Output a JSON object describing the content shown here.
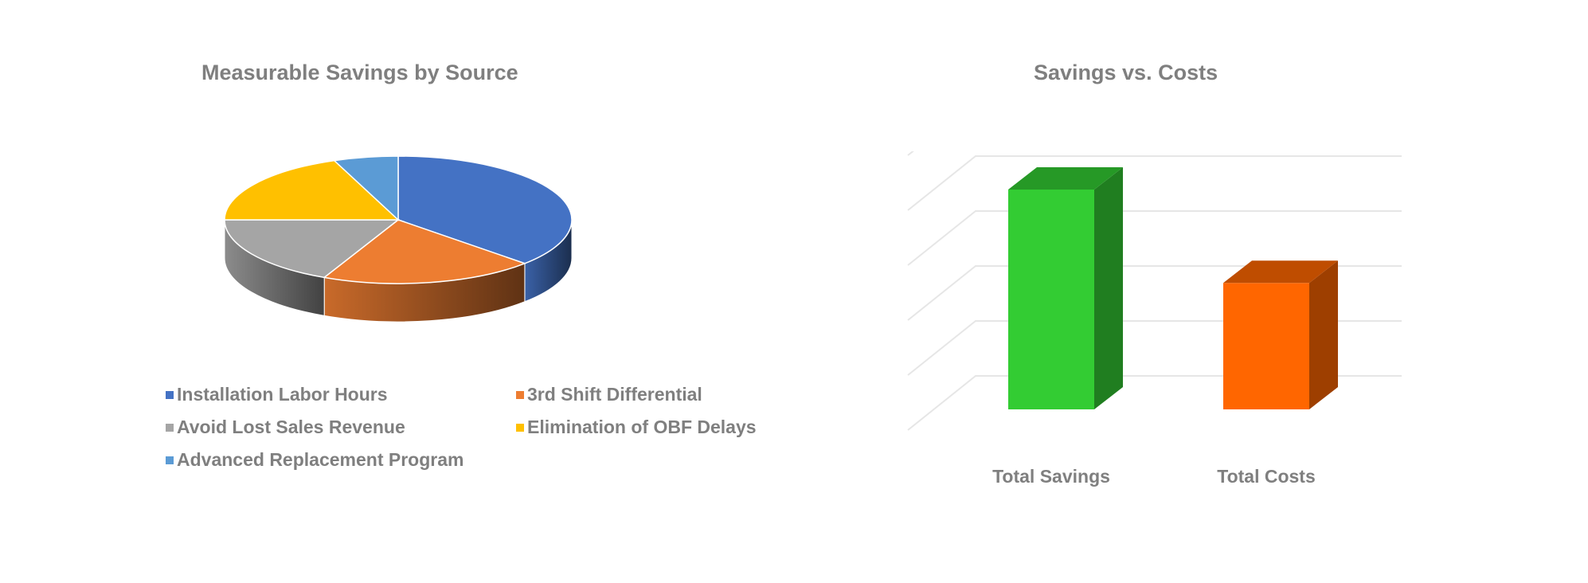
{
  "chart_data": [
    {
      "type": "pie",
      "title": "Measurable Savings by Source",
      "categories": [
        "Installation Labor Hours",
        "3rd Shift Differential",
        "Avoid Lost Sales Revenue",
        "Elimination of OBF Delays",
        "Advanced Replacement Program"
      ],
      "values": [
        37,
        20,
        18,
        19,
        6
      ],
      "colors": [
        "#4472c4",
        "#ed7d31",
        "#a5a5a5",
        "#ffc000",
        "#5b9bd5"
      ],
      "legend_position": "bottom",
      "style": "3d"
    },
    {
      "type": "bar",
      "title": "Savings vs. Costs",
      "categories": [
        "Total Savings",
        "Total Costs"
      ],
      "values": [
        4,
        2.3
      ],
      "colors": [
        "#33cc33",
        "#ff6600"
      ],
      "ylim": [
        0,
        5
      ],
      "grid": true,
      "style": "3d"
    }
  ]
}
